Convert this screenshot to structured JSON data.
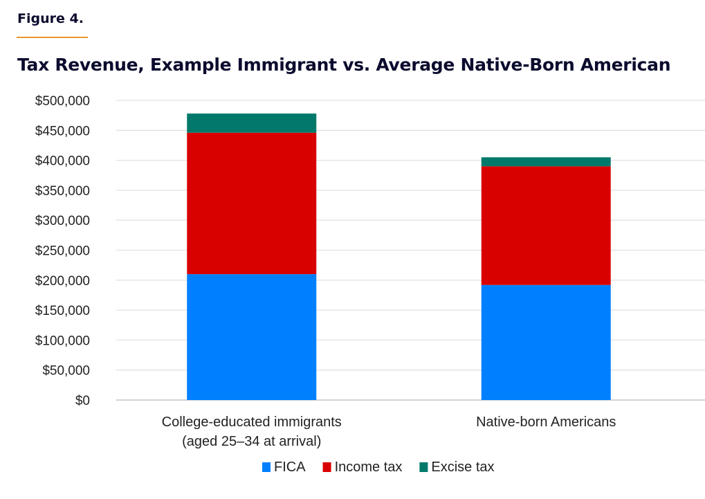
{
  "figure_label": "Figure 4.",
  "chart_data": {
    "type": "bar",
    "stacked": true,
    "title": "Tax Revenue, Example Immigrant vs. Average Native-Born American",
    "xlabel": "",
    "ylabel": "",
    "ylim": [
      0,
      500000
    ],
    "yticks": [
      0,
      50000,
      100000,
      150000,
      200000,
      250000,
      300000,
      350000,
      400000,
      450000,
      500000
    ],
    "ytick_labels": [
      "$0",
      "$50,000",
      "$100,000",
      "$150,000",
      "$200,000",
      "$250,000",
      "$300,000",
      "$350,000",
      "$400,000",
      "$450,000",
      "$500,000"
    ],
    "grid": true,
    "categories": [
      [
        "College-educated immigrants",
        "(aged 25–34 at arrival)"
      ],
      [
        "Native-born Americans"
      ]
    ],
    "series": [
      {
        "name": "FICA",
        "color": "#0080ff",
        "values": [
          210000,
          192000
        ]
      },
      {
        "name": "Income tax",
        "color": "#d90000",
        "values": [
          236000,
          198000
        ]
      },
      {
        "name": "Excise tax",
        "color": "#00796b",
        "values": [
          32000,
          15000
        ]
      }
    ],
    "legend_position": "bottom"
  }
}
